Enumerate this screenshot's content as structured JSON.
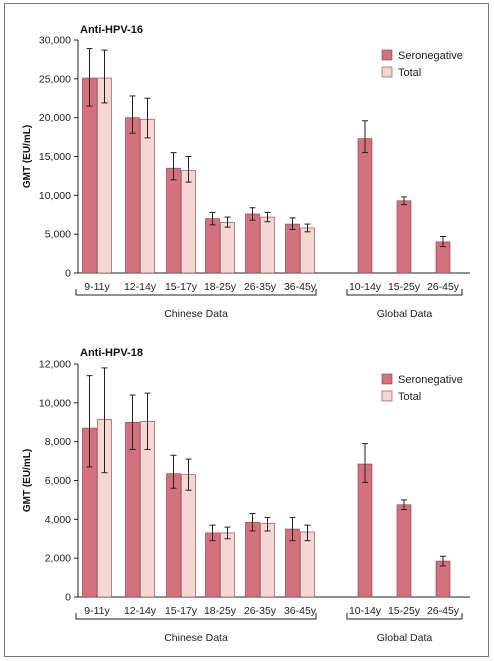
{
  "colors": {
    "seronegative": "#d3717f",
    "total": "#f4d6d2",
    "bar_edge": "#8a3a45",
    "axis": "#222222",
    "border": "#777777"
  },
  "chart_data": [
    {
      "type": "bar",
      "title": "Anti-HPV-16",
      "ylabel": "GMT (EU/mL)",
      "ylim": [
        0,
        30000
      ],
      "yticks": [
        0,
        5000,
        10000,
        15000,
        20000,
        25000,
        30000
      ],
      "ytick_labels": [
        "0",
        "5,000",
        "10,000",
        "15,000",
        "20,000",
        "25,000",
        "30,000"
      ],
      "legend_position": "top-right",
      "groups": [
        {
          "label": "Chinese Data",
          "categories": [
            "9-11y",
            "12-14y",
            "15-17y",
            "18-25y",
            "26-35y",
            "36-45y"
          ]
        },
        {
          "label": "Global Data",
          "categories": [
            "10-14y",
            "15-25y",
            "26-45y"
          ]
        }
      ],
      "series": [
        {
          "name": "Seronegative",
          "values": [
            25100,
            20000,
            13500,
            7000,
            7600,
            6300,
            17300,
            9300,
            4000
          ],
          "err_low": [
            21500,
            18000,
            12000,
            6200,
            6800,
            5600,
            15500,
            8800,
            3400
          ],
          "err_high": [
            28900,
            22800,
            15500,
            7800,
            8400,
            7100,
            19600,
            9800,
            4700
          ]
        },
        {
          "name": "Total",
          "values": [
            25100,
            19800,
            13200,
            6500,
            7200,
            5800,
            null,
            null,
            null
          ],
          "err_low": [
            21900,
            17400,
            11700,
            5900,
            6600,
            5300,
            null,
            null,
            null
          ],
          "err_high": [
            28700,
            22500,
            15000,
            7200,
            7800,
            6300,
            null,
            null,
            null
          ]
        }
      ]
    },
    {
      "type": "bar",
      "title": "Anti-HPV-18",
      "ylabel": "GMT (EU/mL)",
      "ylim": [
        0,
        12000
      ],
      "yticks": [
        0,
        2000,
        4000,
        6000,
        8000,
        10000,
        12000
      ],
      "ytick_labels": [
        "0",
        "2,000",
        "4,000",
        "6,000",
        "8,000",
        "10,000",
        "12,000"
      ],
      "legend_position": "top-right",
      "groups": [
        {
          "label": "Chinese Data",
          "categories": [
            "9-11y",
            "12-14y",
            "15-17y",
            "18-25y",
            "26-35y",
            "36-45y"
          ]
        },
        {
          "label": "Global Data",
          "categories": [
            "10-14y",
            "15-25y",
            "26-45y"
          ]
        }
      ],
      "series": [
        {
          "name": "Seronegative",
          "values": [
            8700,
            9000,
            6350,
            3300,
            3850,
            3500,
            6850,
            4750,
            1850
          ],
          "err_low": [
            6700,
            7600,
            5600,
            2900,
            3400,
            2900,
            5900,
            4500,
            1600
          ],
          "err_high": [
            11400,
            10400,
            7300,
            3700,
            4300,
            4100,
            7900,
            5000,
            2100
          ]
        },
        {
          "name": "Total",
          "values": [
            9150,
            9050,
            6300,
            3300,
            3800,
            3350,
            null,
            null,
            null
          ],
          "err_low": [
            6400,
            7600,
            5500,
            3000,
            3400,
            2900,
            null,
            null,
            null
          ],
          "err_high": [
            11800,
            10500,
            7100,
            3600,
            4100,
            3700,
            null,
            null,
            null
          ]
        }
      ]
    }
  ]
}
